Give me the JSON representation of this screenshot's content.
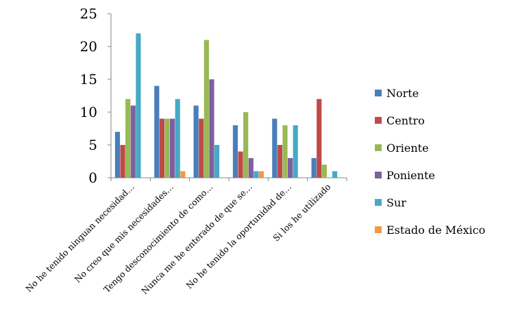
{
  "chart_data": {
    "type": "bar",
    "categories": [
      "No he tenido ninguan necesidad…",
      "No creo que mis necesidades…",
      "Tengo desconocimiento de como…",
      "Nunca me he enterado de que se…",
      "No he tenido la oportunidad de…",
      "Si los he utilizado"
    ],
    "series": [
      {
        "name": "Norte",
        "color": "#4A7EBB",
        "values": [
          7,
          14,
          11,
          8,
          9,
          3
        ]
      },
      {
        "name": "Centro",
        "color": "#BE4B48",
        "values": [
          5,
          9,
          9,
          4,
          5,
          12
        ]
      },
      {
        "name": "Oriente",
        "color": "#98B954",
        "values": [
          12,
          9,
          21,
          10,
          8,
          2
        ]
      },
      {
        "name": "Poniente",
        "color": "#7D60A0",
        "values": [
          11,
          9,
          15,
          3,
          3,
          0
        ]
      },
      {
        "name": "Sur",
        "color": "#46AAC5",
        "values": [
          22,
          12,
          5,
          1,
          8,
          1
        ]
      },
      {
        "name": "Estado de México",
        "color": "#F79646",
        "values": [
          0,
          1,
          0,
          1,
          0,
          0
        ]
      }
    ],
    "ylim": [
      0,
      25
    ],
    "yticks": [
      0,
      5,
      10,
      15,
      20,
      25
    ],
    "gridlines": false,
    "legend_position": "right"
  }
}
